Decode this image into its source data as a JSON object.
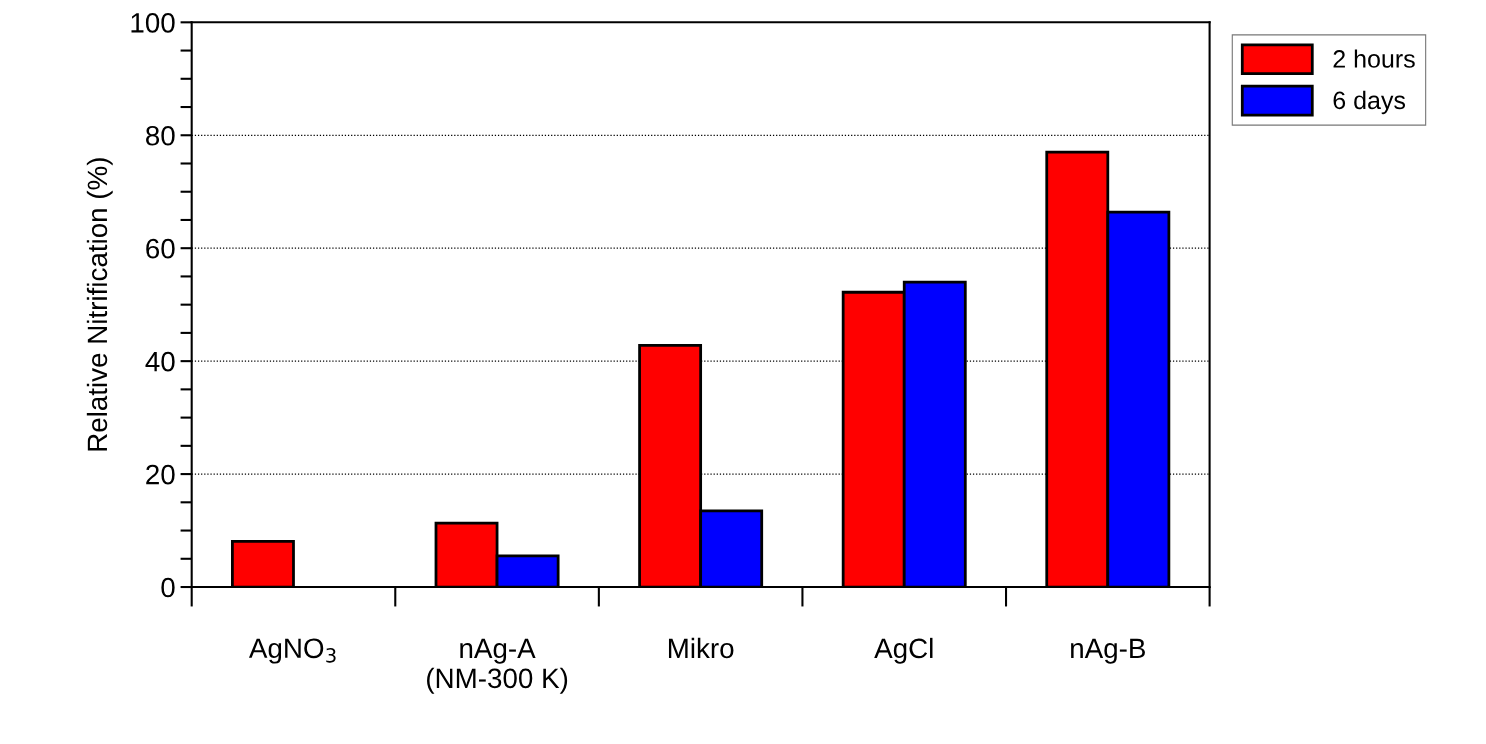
{
  "chart_data": {
    "type": "bar",
    "ylabel": "Relative Nitrification (%)",
    "categories": [
      "AgNO$_{3}$",
      "nAg-A\n(NM-300 K)",
      "Mikro",
      "AgCl",
      "nAg-B"
    ],
    "series": [
      {
        "name": "2 hours",
        "color": "#ff0000",
        "values": [
          8.1,
          11.3,
          42.8,
          52.2,
          77.0
        ]
      },
      {
        "name": "6 days",
        "color": "#0000ff",
        "values": [
          null,
          5.5,
          13.5,
          54.0,
          66.4
        ]
      }
    ],
    "ylim": [
      0,
      100
    ],
    "yticks": [
      0,
      {
        "value": 5,
        "label": null
      },
      {
        "value": 10,
        "label": null
      },
      {
        "value": 15,
        "label": null
      },
      20,
      {
        "value": 25,
        "label": null
      },
      {
        "value": 30,
        "label": null
      },
      {
        "value": 35,
        "label": null
      },
      40,
      {
        "value": 45,
        "label": null
      },
      {
        "value": 50,
        "label": null
      },
      {
        "value": 55,
        "label": null
      },
      60,
      {
        "value": 65,
        "label": null
      },
      {
        "value": 70,
        "label": null
      },
      {
        "value": 75,
        "label": null
      },
      80,
      {
        "value": 85,
        "label": null
      },
      {
        "value": 90,
        "label": null
      },
      {
        "value": 95,
        "label": null
      },
      100
    ],
    "grid": "y",
    "legend": "top right"
  }
}
